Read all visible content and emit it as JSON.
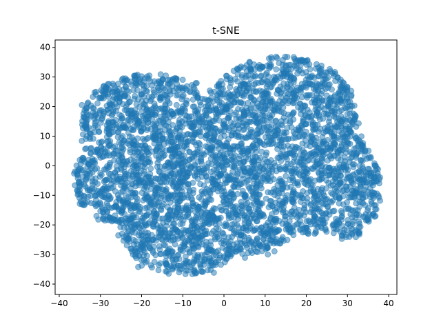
{
  "chart_data": {
    "type": "scatter",
    "title": "t-SNE",
    "xlabel": "",
    "ylabel": "",
    "xlim": [
      -41,
      42
    ],
    "ylim": [
      -43.5,
      42.5
    ],
    "xticks": [
      -40,
      -30,
      -20,
      -10,
      0,
      10,
      20,
      30,
      40
    ],
    "yticks": [
      -40,
      -30,
      -20,
      -10,
      0,
      10,
      20,
      30,
      40
    ],
    "xtick_labels": [
      "−40",
      "−30",
      "−20",
      "−10",
      "0",
      "10",
      "20",
      "30",
      "40"
    ],
    "ytick_labels": [
      "−40",
      "−30",
      "−20",
      "−10",
      "0",
      "10",
      "20",
      "30",
      "40"
    ],
    "grid": false,
    "legend": "none",
    "marker_color": "#1f77b4",
    "marker_alpha": 0.5,
    "series": [
      {
        "points_description": "dense point cloud of several thousand points filling an irregular blob",
        "x_range": [
          -37,
          38
        ],
        "y_range": [
          -40,
          38
        ]
      }
    ]
  }
}
